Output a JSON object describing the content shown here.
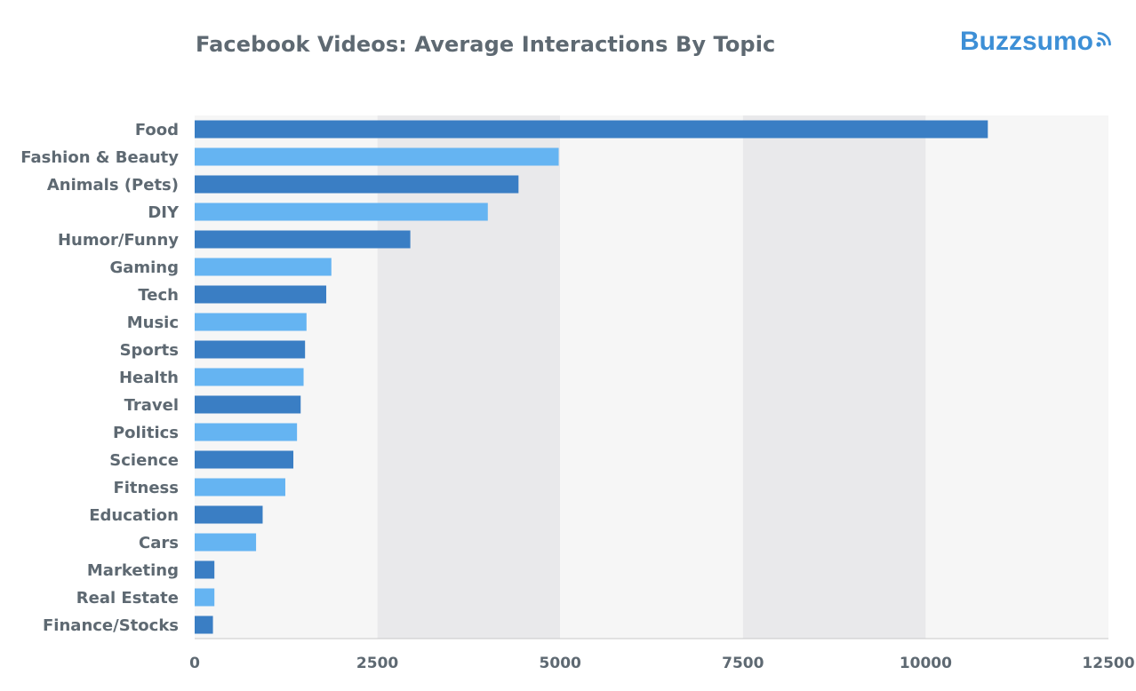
{
  "title": "Facebook Videos: Average Interactions By Topic",
  "brand": {
    "name": "Buzzsumo",
    "icon": "signal-wave-icon",
    "color": "#3d8fd6"
  },
  "colors": {
    "dark": "#3a7ec4",
    "light": "#65b4f2",
    "band_light": "#f6f6f6",
    "band_dark": "#e9e9eb"
  },
  "chart_data": {
    "type": "bar",
    "orientation": "horizontal",
    "title": "Facebook Videos: Average Interactions By Topic",
    "categories": [
      "Food",
      "Fashion & Beauty",
      "Animals (Pets)",
      "DIY",
      "Humor/Funny",
      "Gaming",
      "Tech",
      "Music",
      "Sports",
      "Health",
      "Travel",
      "Politics",
      "Science",
      "Fitness",
      "Education",
      "Cars",
      "Marketing",
      "Real Estate",
      "Finance/Stocks"
    ],
    "values": [
      10850,
      4980,
      4430,
      4010,
      2950,
      1870,
      1800,
      1530,
      1510,
      1490,
      1450,
      1400,
      1350,
      1240,
      930,
      840,
      270,
      270,
      250
    ],
    "xlim": [
      0,
      12500
    ],
    "xticks": [
      "0",
      "2500",
      "5000",
      "7500",
      "10000",
      "12500"
    ],
    "xlabel": "",
    "ylabel": "",
    "grid": "alternating vertical bands"
  }
}
